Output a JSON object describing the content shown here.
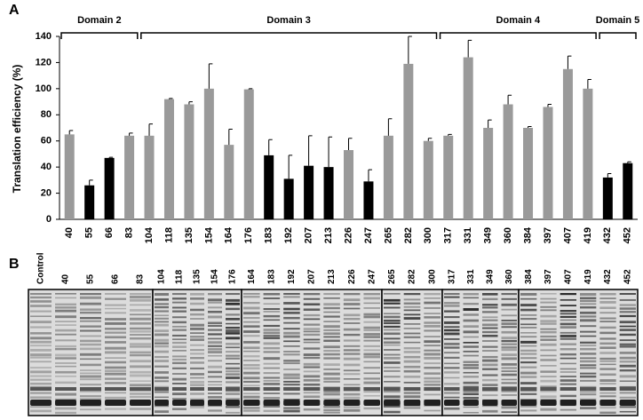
{
  "panel_labels": [
    "A",
    "B"
  ],
  "chart_data": {
    "type": "bar",
    "y_label": "Translation efficiency (%)",
    "categories": [
      "40",
      "55",
      "66",
      "83",
      "104",
      "118",
      "135",
      "154",
      "164",
      "176",
      "183",
      "192",
      "207",
      "213",
      "226",
      "247",
      "265",
      "282",
      "300",
      "317",
      "331",
      "349",
      "360",
      "384",
      "397",
      "407",
      "419",
      "432",
      "452"
    ],
    "values": [
      65,
      26,
      47,
      64,
      64,
      92,
      88,
      100,
      57,
      99.5,
      49,
      31,
      41,
      40,
      53,
      29,
      64,
      119,
      60,
      64,
      124,
      70,
      88,
      70,
      86,
      115,
      100,
      32,
      43
    ],
    "errors": [
      3,
      4,
      0.5,
      2,
      9,
      0.5,
      2,
      19,
      12,
      0.5,
      12,
      18,
      23,
      23,
      9,
      9,
      13,
      21,
      2,
      1,
      13,
      6,
      7,
      1,
      2,
      10,
      7,
      3,
      1
    ],
    "colors": [
      "#9a9a9a",
      "#000000",
      "#000000",
      "#9a9a9a",
      "#9a9a9a",
      "#9a9a9a",
      "#9a9a9a",
      "#9a9a9a",
      "#9a9a9a",
      "#9a9a9a",
      "#000000",
      "#000000",
      "#000000",
      "#000000",
      "#9a9a9a",
      "#000000",
      "#9a9a9a",
      "#9a9a9a",
      "#9a9a9a",
      "#9a9a9a",
      "#9a9a9a",
      "#9a9a9a",
      "#9a9a9a",
      "#9a9a9a",
      "#9a9a9a",
      "#9a9a9a",
      "#9a9a9a",
      "#000000",
      "#000000"
    ],
    "domains": [
      "Domain 2",
      "Domain 3",
      "Domain 4",
      "Domain 5"
    ],
    "ylim": [
      0,
      140
    ],
    "yticks": [
      0,
      20,
      40,
      60,
      80,
      100,
      120,
      140
    ]
  },
  "gel_lanes": [
    "Control",
    "40",
    "55",
    "66",
    "83",
    "104",
    "118",
    "135",
    "154",
    "176",
    "164",
    "183",
    "192",
    "207",
    "213",
    "226",
    "247",
    "265",
    "282",
    "300",
    "317",
    "331",
    "349",
    "360",
    "384",
    "397",
    "407",
    "419",
    "432",
    "452"
  ]
}
